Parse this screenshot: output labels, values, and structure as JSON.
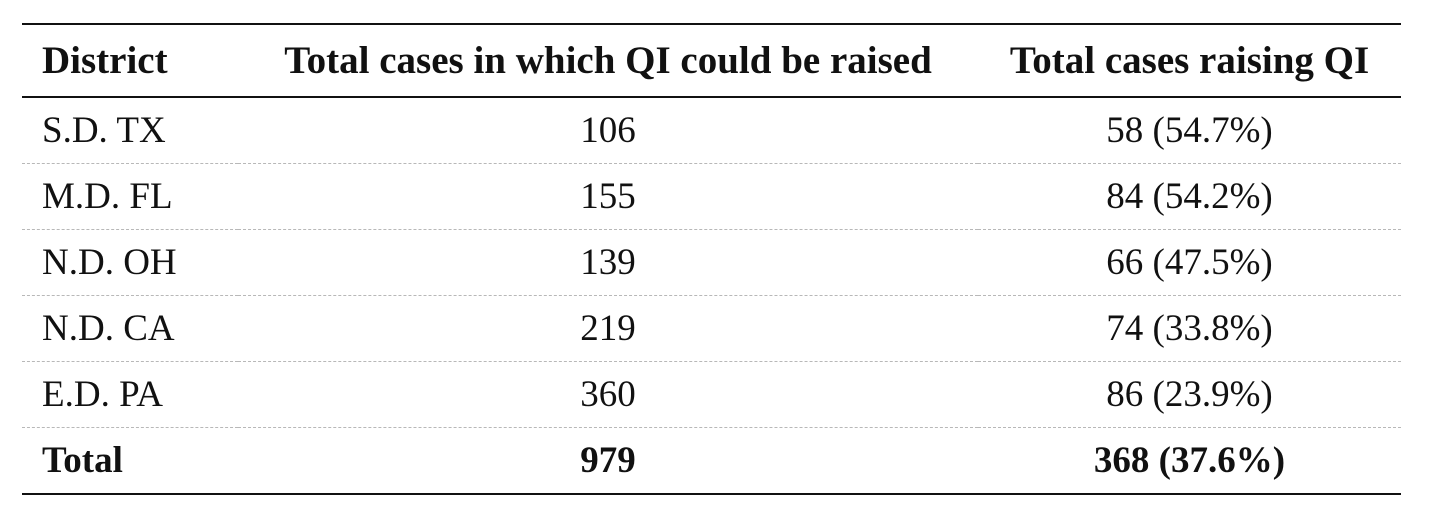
{
  "table": {
    "headers": {
      "district": "District",
      "possible": "Total cases in which QI could be raised",
      "raising": "Total cases raising QI"
    },
    "rows": [
      {
        "district": "S.D. TX",
        "possible": "106",
        "raising": "58 (54.7%)"
      },
      {
        "district": "M.D. FL",
        "possible": "155",
        "raising": "84 (54.2%)"
      },
      {
        "district": "N.D. OH",
        "possible": "139",
        "raising": "66 (47.5%)"
      },
      {
        "district": "N.D. CA",
        "possible": "219",
        "raising": "74 (33.8%)"
      },
      {
        "district": "E.D. PA",
        "possible": "360",
        "raising": "86 (23.9%)"
      }
    ],
    "total": {
      "district": "Total",
      "possible": "979",
      "raising": "368 (37.6%)"
    }
  }
}
